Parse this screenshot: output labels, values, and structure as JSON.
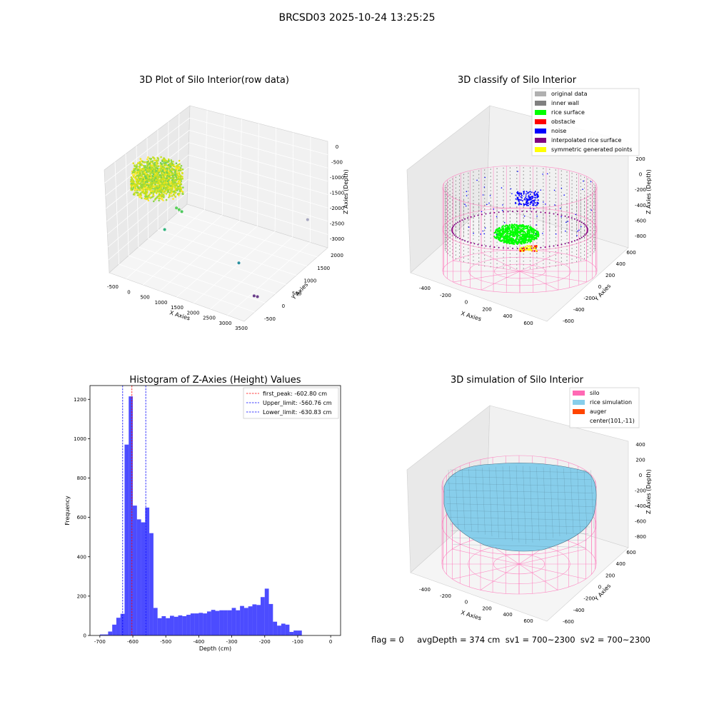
{
  "figure": {
    "title": "BRCSD03 2025-10-24 13:25:25",
    "status_line": "flag = 0     avgDepth = 374 cm  sv1 = 700~2300  sv2 = 700~2300"
  },
  "chart_data": [
    {
      "type": "scatter",
      "title": "3D Plot of Silo Interior(row data)",
      "xlabel": "X Axies",
      "ylabel": "Y Axies",
      "zlabel": "Z Axies (Depth)",
      "xticks": [
        "-500",
        "0",
        "500",
        "1000",
        "1500",
        "2000",
        "2500",
        "3000",
        "3500"
      ],
      "yticks": [
        "-500",
        "0",
        "500",
        "1000",
        "1500",
        "2000"
      ],
      "zticks": [
        "0",
        "-500",
        "-1000",
        "-1500",
        "-2000",
        "-2500",
        "-3000"
      ],
      "colormap": "viridis",
      "outlier_points": [
        {
          "x": 520,
          "y": 480,
          "z": -1550,
          "color": "#5ad15a"
        },
        {
          "x": 560,
          "y": 520,
          "z": -1620,
          "color": "#5ad15a"
        },
        {
          "x": 600,
          "y": 560,
          "z": -1700,
          "color": "#4fc85e"
        },
        {
          "x": 350,
          "y": 300,
          "z": -2100,
          "color": "#2fb47c"
        },
        {
          "x": 2350,
          "y": 500,
          "z": -2550,
          "color": "#2a8fa0"
        },
        {
          "x": 3100,
          "y": 200,
          "z": -3000,
          "color": "#6a3d8a"
        },
        {
          "x": 3150,
          "y": 250,
          "z": -3050,
          "color": "#6a3d8a"
        },
        {
          "x": 3200,
          "y": 1700,
          "z": -2000,
          "color": "#a7a7c0"
        }
      ]
    },
    {
      "type": "scatter",
      "title": "3D classify of Silo Interior",
      "xlabel": "X Axies",
      "ylabel": "Y Axies",
      "zlabel": "Z Axies (Depth)",
      "xticks": [
        "-400",
        "-200",
        "0",
        "200",
        "400",
        "600"
      ],
      "yticks": [
        "-600",
        "-400",
        "-200",
        "0",
        "200",
        "400",
        "600"
      ],
      "zticks": [
        "200",
        "0",
        "-200",
        "-400",
        "-600",
        "-800"
      ],
      "legend": [
        {
          "label": "original data",
          "color": "#b0b0b0"
        },
        {
          "label": "inner wall",
          "color": "#808080"
        },
        {
          "label": "rice surface",
          "color": "#00ff00"
        },
        {
          "label": "obstacle",
          "color": "#ff0000"
        },
        {
          "label": "noise",
          "color": "#0000ff"
        },
        {
          "label": "interpolated rice surface",
          "color": "#800080"
        },
        {
          "label": "symmetric generated points",
          "color": "#ffff00"
        }
      ],
      "legend_position": "upper right"
    },
    {
      "type": "bar",
      "title": "Histogram of Z-Axies (Height) Values",
      "xlabel": "Depth (cm)",
      "ylabel": "Frequency",
      "bar_color": "#0000ff",
      "bar_alpha": 0.7,
      "bin_width": 12.5,
      "xlim": [
        -730,
        30
      ],
      "ylim": [
        0,
        1270
      ],
      "xticks": [
        -700,
        -600,
        -500,
        -400,
        -300,
        -200,
        -100,
        0
      ],
      "yticks": [
        0,
        200,
        400,
        600,
        800,
        1000,
        1200
      ],
      "bins": [
        {
          "x0": -700,
          "count": 5
        },
        {
          "x0": -687.5,
          "count": 5
        },
        {
          "x0": -675,
          "count": 20
        },
        {
          "x0": -662.5,
          "count": 55
        },
        {
          "x0": -650,
          "count": 90
        },
        {
          "x0": -637.5,
          "count": 110
        },
        {
          "x0": -625,
          "count": 970
        },
        {
          "x0": -612.5,
          "count": 1215
        },
        {
          "x0": -600,
          "count": 660
        },
        {
          "x0": -587.5,
          "count": 590
        },
        {
          "x0": -575,
          "count": 575
        },
        {
          "x0": -562.5,
          "count": 650
        },
        {
          "x0": -550,
          "count": 520
        },
        {
          "x0": -537.5,
          "count": 140
        },
        {
          "x0": -525,
          "count": 88
        },
        {
          "x0": -512.5,
          "count": 98
        },
        {
          "x0": -500,
          "count": 88
        },
        {
          "x0": -487.5,
          "count": 100
        },
        {
          "x0": -475,
          "count": 95
        },
        {
          "x0": -462.5,
          "count": 102
        },
        {
          "x0": -450,
          "count": 98
        },
        {
          "x0": -437.5,
          "count": 105
        },
        {
          "x0": -425,
          "count": 112
        },
        {
          "x0": -412.5,
          "count": 112
        },
        {
          "x0": -400,
          "count": 115
        },
        {
          "x0": -387.5,
          "count": 112
        },
        {
          "x0": -375,
          "count": 122
        },
        {
          "x0": -362.5,
          "count": 130
        },
        {
          "x0": -350,
          "count": 125
        },
        {
          "x0": -337.5,
          "count": 128
        },
        {
          "x0": -325,
          "count": 128
        },
        {
          "x0": -312.5,
          "count": 128
        },
        {
          "x0": -300,
          "count": 140
        },
        {
          "x0": -287.5,
          "count": 128
        },
        {
          "x0": -275,
          "count": 150
        },
        {
          "x0": -262.5,
          "count": 140
        },
        {
          "x0": -250,
          "count": 148
        },
        {
          "x0": -237.5,
          "count": 158
        },
        {
          "x0": -225,
          "count": 155
        },
        {
          "x0": -212.5,
          "count": 195
        },
        {
          "x0": -200,
          "count": 238
        },
        {
          "x0": -187.5,
          "count": 160
        },
        {
          "x0": -175,
          "count": 70
        },
        {
          "x0": -162.5,
          "count": 50
        },
        {
          "x0": -150,
          "count": 60
        },
        {
          "x0": -137.5,
          "count": 55
        },
        {
          "x0": -125,
          "count": 18
        },
        {
          "x0": -112.5,
          "count": 25
        },
        {
          "x0": -100,
          "count": 25
        }
      ],
      "vlines": [
        {
          "label": "first_peak: -602.80 cm",
          "x": -602.8,
          "color": "#ff0000"
        },
        {
          "label": "Upper_limit: -560.76 cm",
          "x": -560.76,
          "color": "#0000ff"
        },
        {
          "label": "Lower_limit: -630.83 cm",
          "x": -630.83,
          "color": "#0000ff"
        }
      ],
      "legend_position": "upper right"
    },
    {
      "type": "surface",
      "title": "3D simulation of Silo Interior",
      "xlabel": "X Axies",
      "ylabel": "Y Axies",
      "zlabel": "Z Axies (Depth)",
      "xticks": [
        "-400",
        "-200",
        "0",
        "200",
        "400",
        "600"
      ],
      "yticks": [
        "-600",
        "-400",
        "-200",
        "0",
        "200",
        "400",
        "600"
      ],
      "zticks": [
        "400",
        "200",
        "0",
        "-200",
        "-400",
        "-600",
        "-800"
      ],
      "legend": [
        {
          "label": "silo",
          "color": "#ff69b4"
        },
        {
          "label": "rice simulation",
          "color": "#87ceeb"
        },
        {
          "label": "auger",
          "color": "#ff4500"
        },
        {
          "label": "center(101,-11)",
          "color": "none"
        }
      ],
      "legend_position": "upper right"
    }
  ]
}
